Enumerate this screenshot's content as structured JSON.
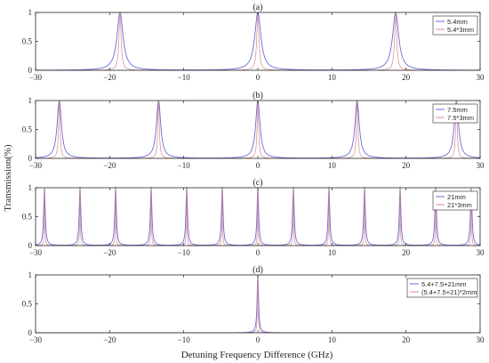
{
  "figure": {
    "xlabel": "Detuning Frequency Difference (GHz)",
    "ylabel": "Transmission(%)"
  },
  "chart_data": [
    {
      "type": "line",
      "title": "(a)",
      "xlim": [
        -30,
        30
      ],
      "ylim": [
        0,
        1
      ],
      "xticks": [
        -30,
        -20,
        -10,
        0,
        10,
        20,
        30
      ],
      "yticks": [
        0,
        0.5,
        1
      ],
      "legend_position": "top-right",
      "series": [
        {
          "name": "5.4mm",
          "color": "#6a6ad8",
          "peak_spacing": 18.6,
          "peak_center": 0,
          "peak_width": 0.5
        },
        {
          "name": "5.4*3mm",
          "color": "#d98a8a",
          "peak_spacing": 18.6,
          "peak_center": 0,
          "peak_width": 0.17
        }
      ]
    },
    {
      "type": "line",
      "title": "(b)",
      "xlim": [
        -30,
        30
      ],
      "ylim": [
        0,
        1
      ],
      "xticks": [
        -30,
        -20,
        -10,
        0,
        10,
        20,
        30
      ],
      "yticks": [
        0,
        0.5,
        1
      ],
      "legend_position": "top-right",
      "series": [
        {
          "name": "7.5mm",
          "color": "#6a6ad8",
          "peak_spacing": 13.4,
          "peak_center": 0,
          "peak_width": 0.35
        },
        {
          "name": "7.5*3mm",
          "color": "#d98a8a",
          "peak_spacing": 13.4,
          "peak_center": 0,
          "peak_width": 0.12
        }
      ]
    },
    {
      "type": "line",
      "title": "(c)",
      "xlim": [
        -30,
        30
      ],
      "ylim": [
        0,
        1
      ],
      "xticks": [
        -30,
        -20,
        -10,
        0,
        10,
        20,
        30
      ],
      "yticks": [
        0,
        0.5,
        1
      ],
      "legend_position": "top-right",
      "series": [
        {
          "name": "21mm",
          "color": "#6a6ad8",
          "peak_spacing": 4.8,
          "peak_center": 0,
          "peak_width": 0.13
        },
        {
          "name": "21*3mm",
          "color": "#d98a8a",
          "peak_spacing": 4.8,
          "peak_center": 0,
          "peak_width": 0.05
        }
      ]
    },
    {
      "type": "line",
      "title": "(d)",
      "xlim": [
        -30,
        30
      ],
      "ylim": [
        0,
        1
      ],
      "xticks": [
        -30,
        -20,
        -10,
        0,
        10,
        20,
        30
      ],
      "yticks": [
        0,
        0.5,
        1
      ],
      "legend_position": "top-right",
      "series": [
        {
          "name": "5.4+7.5+21mm",
          "color": "#6a6ad8",
          "peak_spacing": 0,
          "peak_center": 0,
          "peak_width": 0.12
        },
        {
          "name": "(5.4+7.5+21)*2mm",
          "color": "#d98a8a",
          "peak_spacing": 0,
          "peak_center": 0,
          "peak_width": 0.06
        }
      ]
    }
  ]
}
